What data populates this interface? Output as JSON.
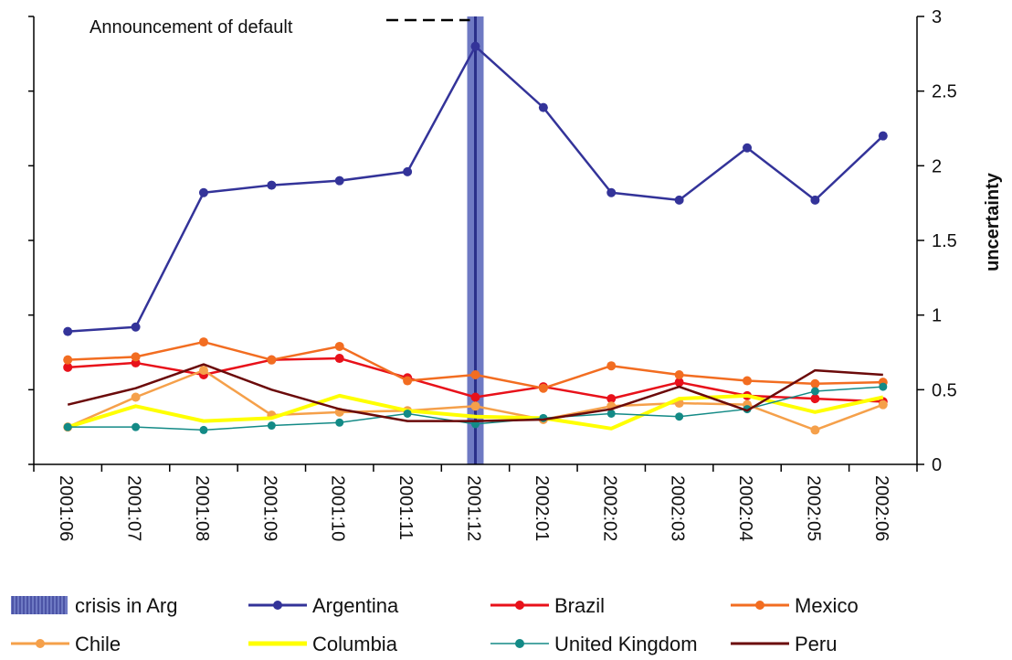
{
  "chart_data": {
    "type": "line",
    "categories": [
      "2001:06",
      "2001:07",
      "2001:08",
      "2001:09",
      "2001:10",
      "2001:11",
      "2001:12",
      "2002:01",
      "2002:02",
      "2002:03",
      "2002:04",
      "2002:05",
      "2002:06"
    ],
    "ylabel": "uncertainty",
    "ylim": [
      0,
      3
    ],
    "y_ticks": [
      "0",
      "0.5",
      "1",
      "1.5",
      "2",
      "2.5",
      "3"
    ],
    "y_axis_side": "right",
    "grid": false,
    "legend_position": "bottom",
    "annotation": {
      "text": "Announcement of default",
      "category": "2001:12"
    },
    "highlight": {
      "name": "crisis in Arg",
      "category": "2001:12",
      "color": "#5561b8"
    },
    "series": [
      {
        "name": "Argentina",
        "color": "#333399",
        "marker": true,
        "values": [
          0.89,
          0.92,
          1.82,
          1.87,
          1.9,
          1.96,
          2.8,
          2.39,
          1.82,
          1.77,
          2.12,
          1.77,
          2.2
        ]
      },
      {
        "name": "Brazil",
        "color": "#e8111a",
        "marker": true,
        "values": [
          0.65,
          0.68,
          0.6,
          0.7,
          0.71,
          0.58,
          0.45,
          0.52,
          0.44,
          0.55,
          0.46,
          0.44,
          0.42
        ]
      },
      {
        "name": "Mexico",
        "color": "#f26d21",
        "marker": true,
        "values": [
          0.7,
          0.72,
          0.82,
          0.7,
          0.79,
          0.56,
          0.6,
          0.51,
          0.66,
          0.6,
          0.56,
          0.54,
          0.55
        ]
      },
      {
        "name": "Chile",
        "color": "#f5a04a",
        "marker": true,
        "values": [
          0.25,
          0.45,
          0.63,
          0.33,
          0.35,
          0.36,
          0.39,
          0.3,
          0.39,
          0.41,
          0.4,
          0.23,
          0.4
        ]
      },
      {
        "name": "Columbia",
        "color": "#ffff00",
        "marker": false,
        "values": [
          0.25,
          0.39,
          0.29,
          0.31,
          0.46,
          0.36,
          0.32,
          0.31,
          0.24,
          0.44,
          0.46,
          0.35,
          0.45
        ]
      },
      {
        "name": "United Kingdom",
        "color": "#138a86",
        "marker": true,
        "values": [
          0.25,
          0.25,
          0.23,
          0.26,
          0.28,
          0.34,
          0.27,
          0.31,
          0.34,
          0.32,
          0.37,
          0.49,
          0.52
        ]
      },
      {
        "name": "Peru",
        "color": "#6b0a0a",
        "marker": false,
        "values": [
          0.4,
          0.51,
          0.67,
          0.5,
          0.37,
          0.29,
          0.29,
          0.3,
          0.37,
          0.52,
          0.36,
          0.63,
          0.6
        ]
      }
    ]
  }
}
